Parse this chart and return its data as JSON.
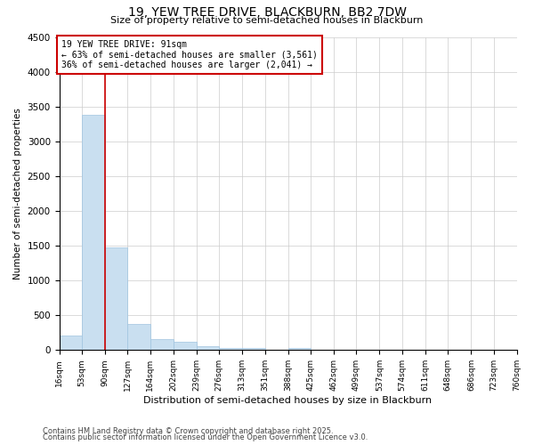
{
  "title1": "19, YEW TREE DRIVE, BLACKBURN, BB2 7DW",
  "title2": "Size of property relative to semi-detached houses in Blackburn",
  "xlabel": "Distribution of semi-detached houses by size in Blackburn",
  "ylabel": "Number of semi-detached properties",
  "annotation_line1": "19 YEW TREE DRIVE: 91sqm",
  "annotation_line2": "← 63% of semi-detached houses are smaller (3,561)",
  "annotation_line3": "36% of semi-detached houses are larger (2,041) →",
  "bins": [
    16,
    53,
    90,
    127,
    164,
    202,
    239,
    276,
    313,
    351,
    388,
    425,
    462,
    499,
    537,
    574,
    611,
    648,
    686,
    723,
    760
  ],
  "counts": [
    205,
    3380,
    1480,
    370,
    155,
    115,
    60,
    35,
    25,
    10,
    30,
    0,
    0,
    0,
    0,
    0,
    0,
    0,
    0,
    0
  ],
  "bar_color": "#c9dff0",
  "bar_edge_color": "#a0c4e0",
  "vline_color": "#cc0000",
  "vline_x": 90,
  "ylim": [
    0,
    4500
  ],
  "yticks": [
    0,
    500,
    1000,
    1500,
    2000,
    2500,
    3000,
    3500,
    4000,
    4500
  ],
  "grid_color": "#cccccc",
  "bg_color": "#ffffff",
  "annotation_box_edge": "#cc0000",
  "footnote1": "Contains HM Land Registry data © Crown copyright and database right 2025.",
  "footnote2": "Contains public sector information licensed under the Open Government Licence v3.0."
}
